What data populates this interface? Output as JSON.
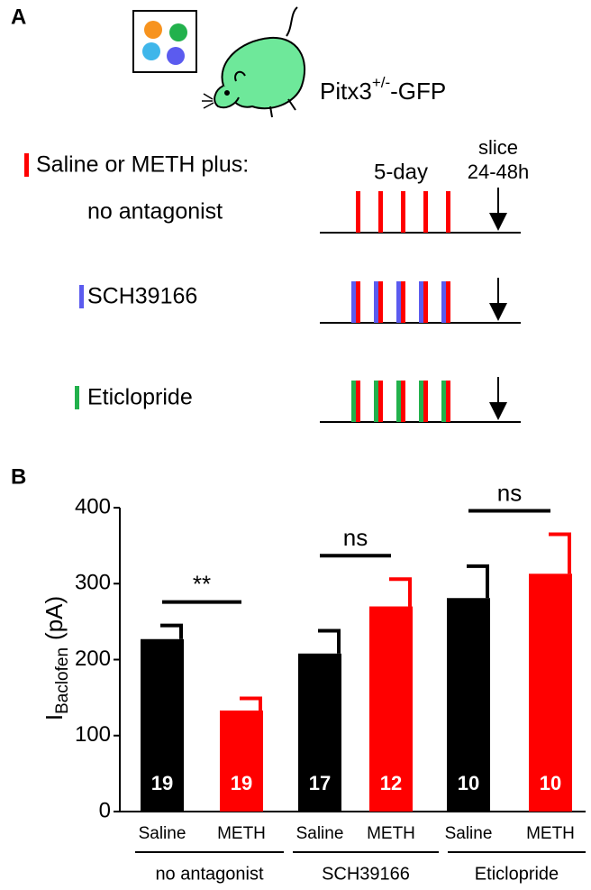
{
  "panel_a": {
    "letter": "A",
    "mouse_label": {
      "main": "Pitx3",
      "sup": "+/-",
      "rest": "-GFP"
    },
    "treatment": "Saline or METH plus:",
    "duration": "5-day",
    "slice": "slice",
    "slice_time": "24-48h",
    "rows": [
      "no antagonist",
      "SCH39166",
      "Eticlopride"
    ]
  },
  "chart_data": {
    "type": "bar",
    "letter": "B",
    "y_label": {
      "main": "I",
      "sub": "Baclofen",
      "unit": "(pA)"
    },
    "categories": [
      "Saline",
      "METH",
      "Saline",
      "METH",
      "Saline",
      "METH"
    ],
    "groups": [
      "no antagonist",
      "SCH39166",
      "Eticlopride"
    ],
    "values": [
      227,
      133,
      208,
      270,
      281,
      313
    ],
    "errors": [
      18,
      16,
      30,
      36,
      42,
      52
    ],
    "colors": [
      "#000000",
      "#ff0000",
      "#000000",
      "#ff0000",
      "#000000",
      "#ff0000"
    ],
    "n": [
      19,
      19,
      17,
      12,
      10,
      10
    ],
    "significance": [
      "**",
      "ns",
      "ns"
    ],
    "ylim": [
      0,
      400
    ],
    "yticks": [
      0,
      100,
      200,
      300,
      400
    ]
  }
}
